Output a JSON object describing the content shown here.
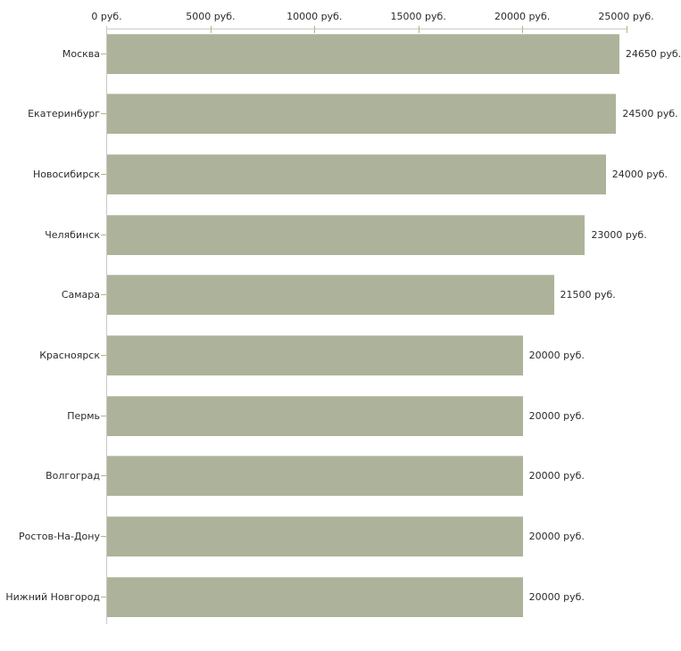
{
  "chart_data": {
    "type": "bar",
    "orientation": "horizontal",
    "title": "",
    "xlabel": "",
    "ylabel": "",
    "unit": "руб.",
    "categories": [
      "Москва",
      "Екатеринбург",
      "Новосибирск",
      "Челябинск",
      "Самара",
      "Красноярск",
      "Пермь",
      "Волгоград",
      "Ростов-На-Дону",
      "Нижний Новгород"
    ],
    "values": [
      24650,
      24500,
      24000,
      23000,
      21500,
      20000,
      20000,
      20000,
      20000,
      20000
    ],
    "value_labels": [
      "24650 руб.",
      "24500 руб.",
      "24000 руб.",
      "23000 руб.",
      "21500 руб.",
      "20000 руб.",
      "20000 руб.",
      "20000 руб.",
      "20000 руб.",
      "20000 руб."
    ],
    "x_ticks": [
      {
        "value": 0,
        "label": "0 руб."
      },
      {
        "value": 5000,
        "label": "5000 руб."
      },
      {
        "value": 10000,
        "label": "10000 руб."
      },
      {
        "value": 15000,
        "label": "15000 руб."
      },
      {
        "value": 20000,
        "label": "20000 руб."
      },
      {
        "value": 25000,
        "label": "25000 руб."
      }
    ],
    "xlim": [
      0,
      25000
    ],
    "grid": false,
    "legend": false,
    "axis_position": "top",
    "colors": {
      "bar": "#adb39a",
      "bar_edge": "#c6cab6",
      "axis_line": "#c9c9c9",
      "tick": "#b6b383",
      "text": "#2b2b2b",
      "background": "#ffffff"
    }
  }
}
